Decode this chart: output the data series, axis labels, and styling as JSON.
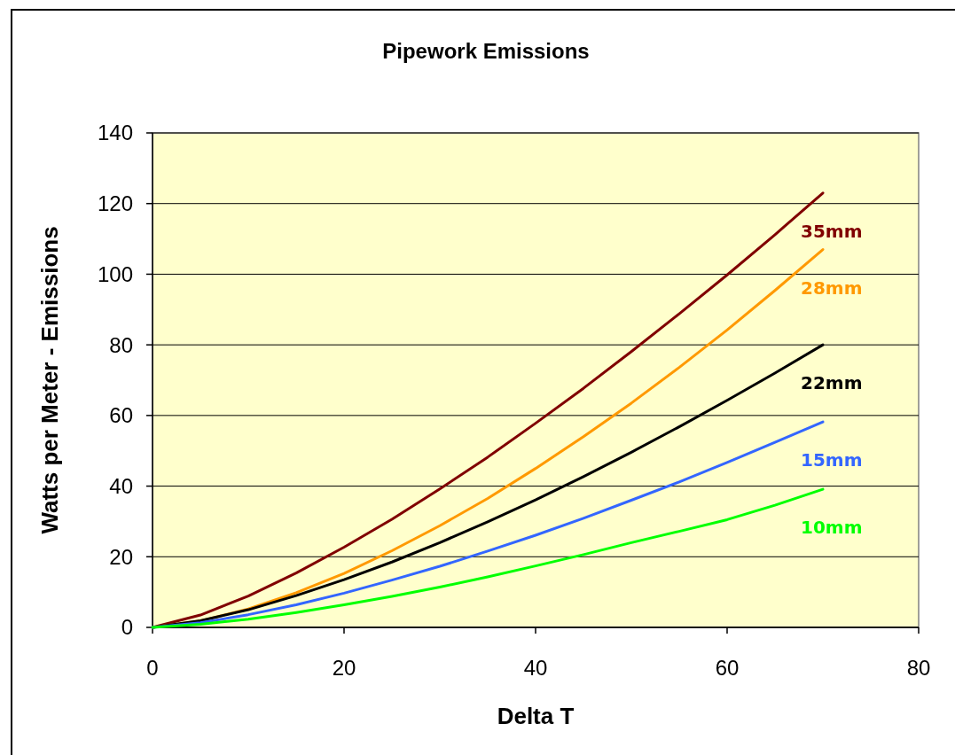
{
  "chart_data": {
    "type": "line",
    "title": "Pipework Emissions",
    "xlabel": "Delta T",
    "ylabel": "Watts per Meter - Emissions",
    "x": [
      0,
      5,
      10,
      15,
      20,
      25,
      30,
      35,
      40,
      45,
      50,
      55,
      60,
      65,
      70
    ],
    "xlim": [
      0,
      80
    ],
    "xticks": [
      0,
      20,
      40,
      60,
      80
    ],
    "ylim": [
      0,
      140
    ],
    "yticks": [
      0,
      20,
      40,
      60,
      80,
      100,
      120,
      140
    ],
    "grid": "y",
    "series": [
      {
        "name": "35mm",
        "color": "#800000",
        "values": [
          0,
          3.5,
          8.9,
          15.4,
          22.7,
          30.6,
          39.2,
          48.2,
          57.8,
          67.7,
          78.1,
          88.8,
          99.8,
          111.2,
          123.0
        ]
      },
      {
        "name": "28mm",
        "color": "#ff9900",
        "values": [
          0,
          1.8,
          5.2,
          9.8,
          15.3,
          21.7,
          28.8,
          36.5,
          45.0,
          54.0,
          63.5,
          73.6,
          84.2,
          95.4,
          107.0
        ]
      },
      {
        "name": "22mm",
        "color": "#000000",
        "values": [
          0,
          1.9,
          5.0,
          9.0,
          13.5,
          18.5,
          24.0,
          29.9,
          36.1,
          42.7,
          49.6,
          56.8,
          64.3,
          72.0,
          80.0
        ]
      },
      {
        "name": "15mm",
        "color": "#3366ff",
        "values": [
          0,
          1.3,
          3.6,
          6.4,
          9.7,
          13.4,
          17.3,
          21.6,
          26.1,
          30.9,
          36.0,
          41.2,
          46.7,
          52.4,
          58.2
        ]
      },
      {
        "name": "10mm",
        "color": "#00ff00",
        "values": [
          0,
          0.9,
          2.3,
          4.2,
          6.4,
          8.8,
          11.4,
          14.3,
          17.4,
          20.6,
          24.0,
          27.2,
          30.5,
          34.6,
          39.1
        ]
      }
    ]
  }
}
